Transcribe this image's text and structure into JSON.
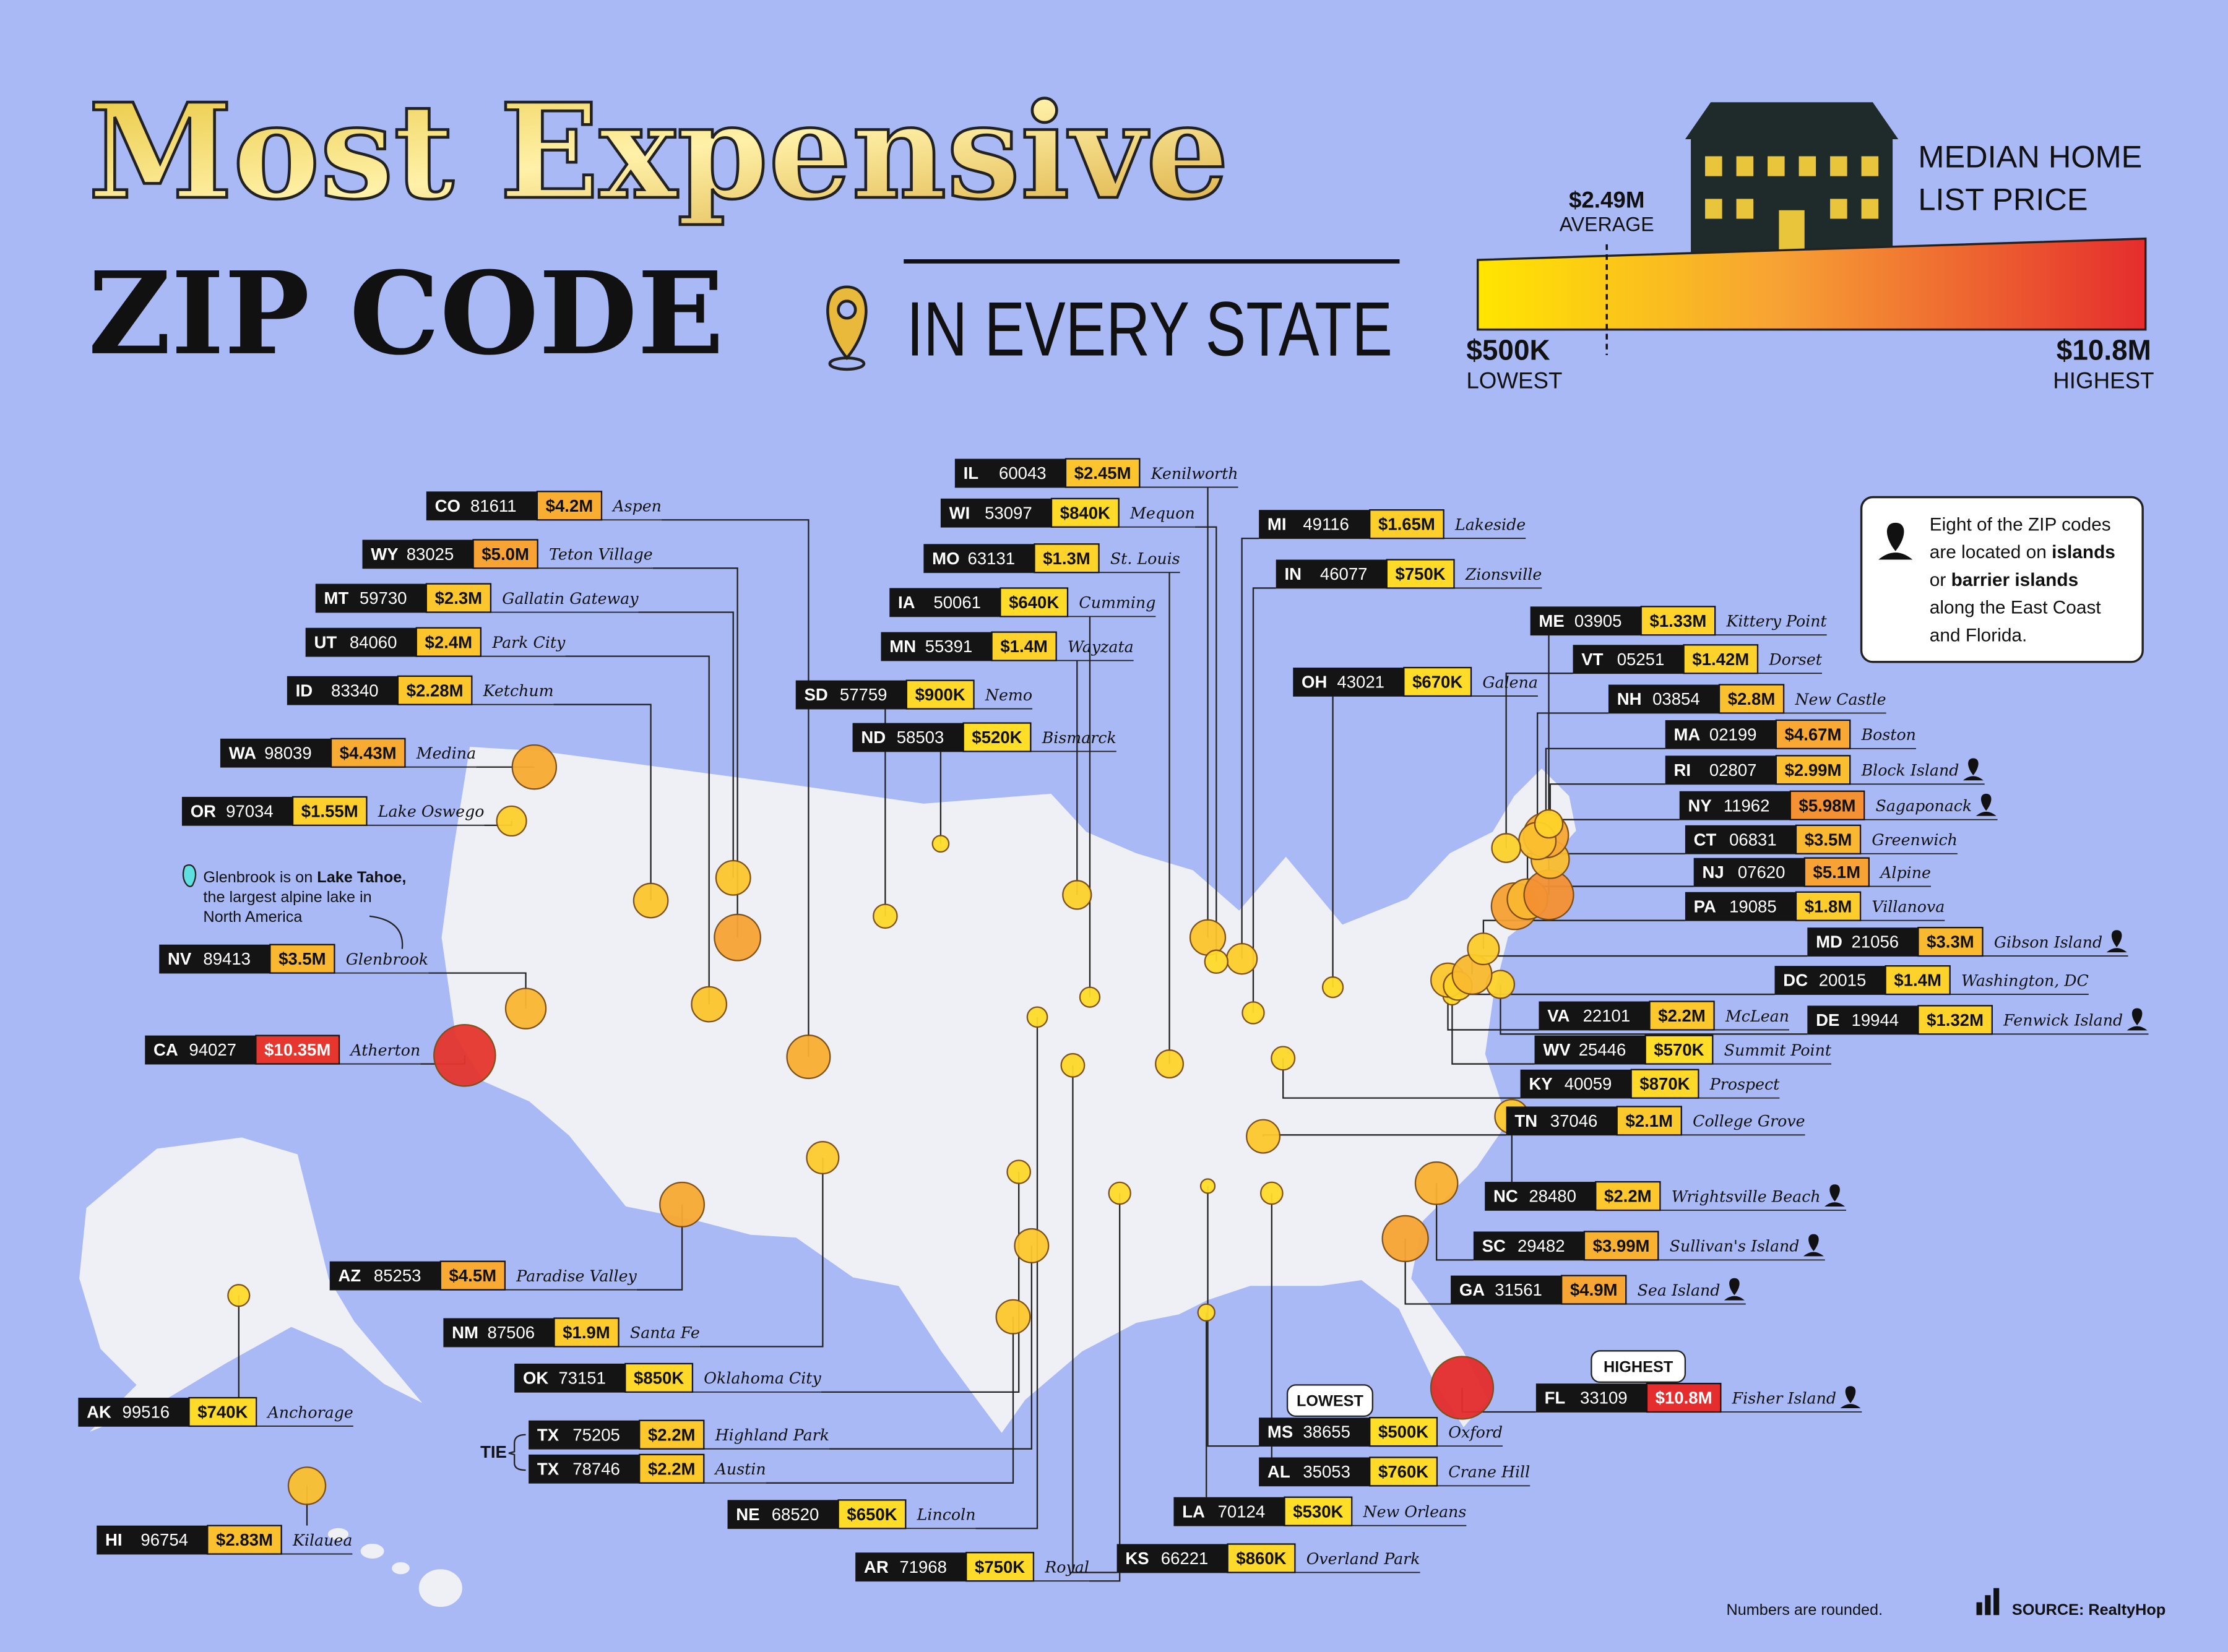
{
  "header": {
    "title_line1": "Most Expensive",
    "title_line2": "ZIP CODE",
    "title_line3": "IN EVERY STATE"
  },
  "legend": {
    "title_lines": [
      "MEDIAN HOME",
      "LIST PRICE"
    ],
    "average_value": "$2.49M",
    "average_label": "AVERAGE",
    "low_value": "$500K",
    "low_label": "LOWEST",
    "high_value": "$10.8M",
    "high_label": "HIGHEST"
  },
  "note": {
    "lines": [
      [
        "Eight of the ZIP codes"
      ],
      [
        "are located on ",
        "islands"
      ],
      [
        "or ",
        "barrier islands"
      ],
      [
        "along the East Coast"
      ],
      [
        "and Florida."
      ]
    ]
  },
  "tahoe_note": {
    "lines": [
      [
        "Glenbrook is on ",
        "Lake Tahoe,"
      ],
      [
        "the largest alpine lake in"
      ],
      [
        "North America"
      ]
    ]
  },
  "tags": {
    "lowest": "LOWEST",
    "highest": "HIGHEST",
    "tie": "TIE"
  },
  "footer": {
    "rounded": "Numbers are rounded.",
    "source": "SOURCE: RealtyHop"
  },
  "zips": [
    {
      "state": "CO",
      "zip": "81611",
      "price": "$4.2M",
      "place": "Aspen"
    },
    {
      "state": "WY",
      "zip": "83025",
      "price": "$5.0M",
      "place": "Teton Village"
    },
    {
      "state": "MT",
      "zip": "59730",
      "price": "$2.3M",
      "place": "Gallatin Gateway"
    },
    {
      "state": "UT",
      "zip": "84060",
      "price": "$2.4M",
      "place": "Park City"
    },
    {
      "state": "ID",
      "zip": "83340",
      "price": "$2.28M",
      "place": "Ketchum"
    },
    {
      "state": "WA",
      "zip": "98039",
      "price": "$4.43M",
      "place": "Medina"
    },
    {
      "state": "OR",
      "zip": "97034",
      "price": "$1.55M",
      "place": "Lake Oswego"
    },
    {
      "state": "NV",
      "zip": "89413",
      "price": "$3.5M",
      "place": "Glenbrook"
    },
    {
      "state": "CA",
      "zip": "94027",
      "price": "$10.35M",
      "place": "Atherton"
    },
    {
      "state": "AZ",
      "zip": "85253",
      "price": "$4.5M",
      "place": "Paradise Valley"
    },
    {
      "state": "NM",
      "zip": "87506",
      "price": "$1.9M",
      "place": "Santa Fe"
    },
    {
      "state": "OK",
      "zip": "73151",
      "price": "$850K",
      "place": "Oklahoma City"
    },
    {
      "state": "TX",
      "zip": "75205",
      "price": "$2.2M",
      "place": "Highland Park"
    },
    {
      "state": "TX",
      "zip": "78746",
      "price": "$2.2M",
      "place": "Austin"
    },
    {
      "state": "NE",
      "zip": "68520",
      "price": "$650K",
      "place": "Lincoln"
    },
    {
      "state": "AR",
      "zip": "71968",
      "price": "$750K",
      "place": "Royal"
    },
    {
      "state": "KS",
      "zip": "66221",
      "price": "$860K",
      "place": "Overland Park"
    },
    {
      "state": "LA",
      "zip": "70124",
      "price": "$530K",
      "place": "New Orleans"
    },
    {
      "state": "AL",
      "zip": "35053",
      "price": "$760K",
      "place": "Crane Hill"
    },
    {
      "state": "MS",
      "zip": "38655",
      "price": "$500K",
      "place": "Oxford"
    },
    {
      "state": "FL",
      "zip": "33109",
      "price": "$10.8M",
      "place": "Fisher Island",
      "island": true
    },
    {
      "state": "GA",
      "zip": "31561",
      "price": "$4.9M",
      "place": "Sea Island",
      "island": true
    },
    {
      "state": "SC",
      "zip": "29482",
      "price": "$3.99M",
      "place": "Sullivan's Island",
      "island": true
    },
    {
      "state": "NC",
      "zip": "28480",
      "price": "$2.2M",
      "place": "Wrightsville Beach",
      "island": true
    },
    {
      "state": "TN",
      "zip": "37046",
      "price": "$2.1M",
      "place": "College Grove"
    },
    {
      "state": "KY",
      "zip": "40059",
      "price": "$870K",
      "place": "Prospect"
    },
    {
      "state": "WV",
      "zip": "25446",
      "price": "$570K",
      "place": "Summit Point"
    },
    {
      "state": "VA",
      "zip": "22101",
      "price": "$2.2M",
      "place": "McLean"
    },
    {
      "state": "DE",
      "zip": "19944",
      "price": "$1.32M",
      "place": "Fenwick Island",
      "island": true
    },
    {
      "state": "DC",
      "zip": "20015",
      "price": "$1.4M",
      "place": "Washington, DC"
    },
    {
      "state": "MD",
      "zip": "21056",
      "price": "$3.3M",
      "place": "Gibson Island",
      "island": true
    },
    {
      "state": "PA",
      "zip": "19085",
      "price": "$1.8M",
      "place": "Villanova"
    },
    {
      "state": "NJ",
      "zip": "07620",
      "price": "$5.1M",
      "place": "Alpine"
    },
    {
      "state": "CT",
      "zip": "06831",
      "price": "$3.5M",
      "place": "Greenwich"
    },
    {
      "state": "NY",
      "zip": "11962",
      "price": "$5.98M",
      "place": "Sagaponack",
      "island": true
    },
    {
      "state": "RI",
      "zip": "02807",
      "price": "$2.99M",
      "place": "Block Island",
      "island": true
    },
    {
      "state": "MA",
      "zip": "02199",
      "price": "$4.67M",
      "place": "Boston"
    },
    {
      "state": "NH",
      "zip": "03854",
      "price": "$2.8M",
      "place": "New Castle"
    },
    {
      "state": "VT",
      "zip": "05251",
      "price": "$1.42M",
      "place": "Dorset"
    },
    {
      "state": "ME",
      "zip": "03905",
      "price": "$1.33M",
      "place": "Kittery Point"
    },
    {
      "state": "OH",
      "zip": "43021",
      "price": "$670K",
      "place": "Galena"
    },
    {
      "state": "IN",
      "zip": "46077",
      "price": "$750K",
      "place": "Zionsville"
    },
    {
      "state": "MI",
      "zip": "49116",
      "price": "$1.65M",
      "place": "Lakeside"
    },
    {
      "state": "IL",
      "zip": "60043",
      "price": "$2.45M",
      "place": "Kenilworth"
    },
    {
      "state": "WI",
      "zip": "53097",
      "price": "$840K",
      "place": "Mequon"
    },
    {
      "state": "MO",
      "zip": "63131",
      "price": "$1.3M",
      "place": "St. Louis"
    },
    {
      "state": "IA",
      "zip": "50061",
      "price": "$640K",
      "place": "Cumming"
    },
    {
      "state": "MN",
      "zip": "55391",
      "price": "$1.4M",
      "place": "Wayzata"
    },
    {
      "state": "SD",
      "zip": "57759",
      "price": "$900K",
      "place": "Nemo"
    },
    {
      "state": "ND",
      "zip": "58503",
      "price": "$520K",
      "place": "Bismarck"
    },
    {
      "state": "AK",
      "zip": "99516",
      "price": "$740K",
      "place": "Anchorage"
    },
    {
      "state": "HI",
      "zip": "96754",
      "price": "$2.83M",
      "place": "Kilauea"
    }
  ]
}
